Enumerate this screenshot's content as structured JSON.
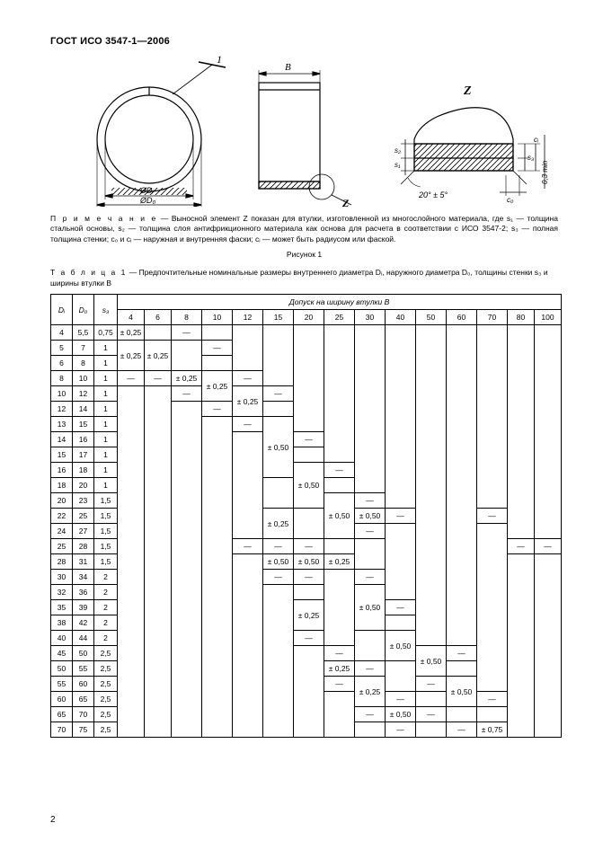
{
  "header": "ГОСТ ИСО 3547-1—2006",
  "note_lead": "П р и м е ч а н и е",
  "note_body": " — Выносной элемент Z показан для втулки, изготовленной из многослойного материала, где s₁ — толщина стальной основы, s₂ — толщина слоя антифрикционного материала как основа для расчета в соответствии с ИСО 3547-2; s₃ — полная толщина стенки; c₀ и cᵢ — наружная и внутренняя фаски; cᵢ — может быть радиусом или фаской.",
  "figcap": "Рисунок 1",
  "tbl_lead": "Т а б л и ц а  1",
  "tbl_body": " — Предпочтительные номинальные размеры внутреннего диаметра Dᵢ, наружного диаметра D₀, толщины стенки s₃ и ширины втулки B",
  "th_Di": "Dᵢ",
  "th_D0": "D₀",
  "th_s3": "s₃",
  "th_tol": "Допуск на ширину втулки B",
  "widths": [
    "4",
    "6",
    "8",
    "10",
    "12",
    "15",
    "20",
    "25",
    "30",
    "40",
    "50",
    "60",
    "70",
    "80",
    "100"
  ],
  "rows": [
    {
      "di": "4",
      "d0": "5,5",
      "s3": "0,75"
    },
    {
      "di": "5",
      "d0": "7",
      "s3": "1"
    },
    {
      "di": "6",
      "d0": "8",
      "s3": "1"
    },
    {
      "di": "8",
      "d0": "10",
      "s3": "1"
    },
    {
      "di": "10",
      "d0": "12",
      "s3": "1"
    },
    {
      "di": "12",
      "d0": "14",
      "s3": "1"
    },
    {
      "di": "13",
      "d0": "15",
      "s3": "1"
    },
    {
      "di": "14",
      "d0": "16",
      "s3": "1"
    },
    {
      "di": "15",
      "d0": "17",
      "s3": "1"
    },
    {
      "di": "16",
      "d0": "18",
      "s3": "1"
    },
    {
      "di": "18",
      "d0": "20",
      "s3": "1"
    },
    {
      "di": "20",
      "d0": "23",
      "s3": "1,5"
    },
    {
      "di": "22",
      "d0": "25",
      "s3": "1,5"
    },
    {
      "di": "24",
      "d0": "27",
      "s3": "1,5"
    },
    {
      "di": "25",
      "d0": "28",
      "s3": "1,5"
    },
    {
      "di": "28",
      "d0": "31",
      "s3": "1,5"
    },
    {
      "di": "30",
      "d0": "34",
      "s3": "2"
    },
    {
      "di": "32",
      "d0": "36",
      "s3": "2"
    },
    {
      "di": "35",
      "d0": "39",
      "s3": "2"
    },
    {
      "di": "38",
      "d0": "42",
      "s3": "2"
    },
    {
      "di": "40",
      "d0": "44",
      "s3": "2"
    },
    {
      "di": "45",
      "d0": "50",
      "s3": "2,5"
    },
    {
      "di": "50",
      "d0": "55",
      "s3": "2,5"
    },
    {
      "di": "55",
      "d0": "60",
      "s3": "2,5"
    },
    {
      "di": "60",
      "d0": "65",
      "s3": "2,5"
    },
    {
      "di": "65",
      "d0": "70",
      "s3": "2,5"
    },
    {
      "di": "70",
      "d0": "75",
      "s3": "2,5"
    }
  ],
  "pm025": "± 0,25",
  "pm050": "± 0,50",
  "pm075": "± 0,75",
  "dash": "—",
  "diag_B": "B",
  "diag_Z": "Z",
  "diag_1": "1",
  "diag_Di": "ØDᵢ",
  "diag_D0": "ØD₀",
  "diag_angle": "20° ± 5°",
  "diag_s1": "s₁",
  "diag_s2": "s₂",
  "diag_s3": "s₃",
  "diag_c0": "c₀",
  "diag_ci": "cᵢ",
  "diag_03": "0,3 min",
  "pagenum": "2",
  "svg": {
    "stroke": "#000000",
    "hatch": "#000000",
    "text_fs": 10
  }
}
